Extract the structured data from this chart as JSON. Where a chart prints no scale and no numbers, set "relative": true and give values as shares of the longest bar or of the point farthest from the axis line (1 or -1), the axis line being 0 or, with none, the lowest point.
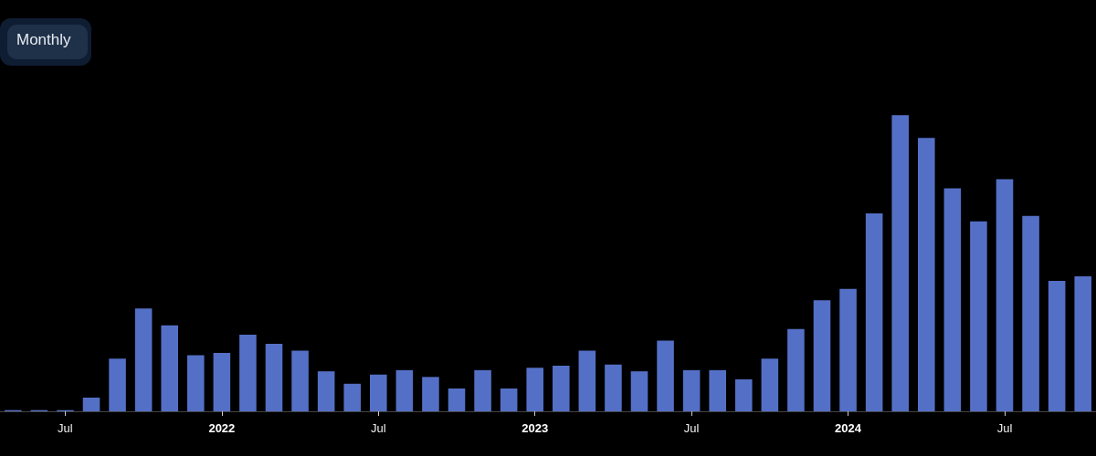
{
  "chart_data": {
    "type": "bar",
    "relative": true,
    "annotations": [
      "Monthly"
    ],
    "categories": [
      null,
      null,
      "Jul",
      null,
      null,
      null,
      null,
      null,
      "2022",
      null,
      null,
      null,
      null,
      null,
      "Jul",
      null,
      null,
      null,
      null,
      null,
      "2023",
      null,
      null,
      null,
      null,
      null,
      "Jul",
      null,
      null,
      null,
      null,
      null,
      "2024",
      null,
      null,
      null,
      null,
      null,
      "Jul",
      null,
      null,
      null
    ],
    "series": [
      {
        "color": "#5470c6",
        "values": [
          0.004,
          0.004,
          0.004,
          0.046,
          0.178,
          0.347,
          0.29,
          0.189,
          0.197,
          0.259,
          0.228,
          0.205,
          0.135,
          0.093,
          0.124,
          0.139,
          0.116,
          0.077,
          0.139,
          0.077,
          0.147,
          0.154,
          0.205,
          0.158,
          0.135,
          0.239,
          0.139,
          0.139,
          0.108,
          0.178,
          0.278,
          0.375,
          0.413,
          0.668,
          1,
          0.923,
          0.753,
          0.641,
          0.784,
          0.66,
          0.44,
          0.456
        ]
      }
    ]
  }
}
